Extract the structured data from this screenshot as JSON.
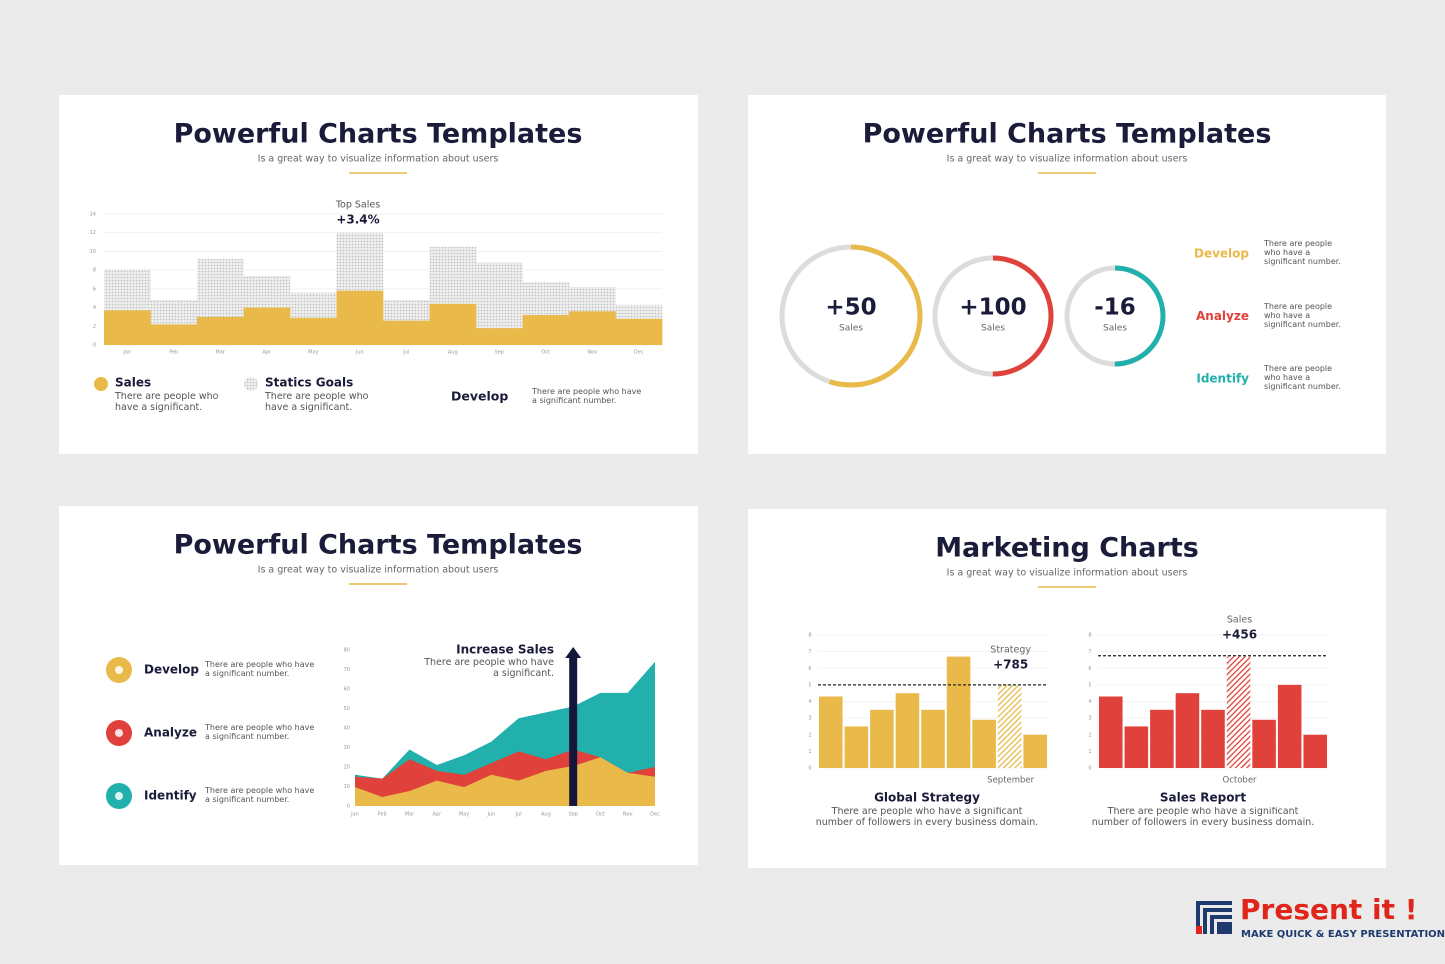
{
  "chart_data": [
    {
      "type": "step-area",
      "title": "Powerful Charts Templates",
      "subtitle": "Is a great way to visualize information about users",
      "annotation_title": "Top Sales",
      "annotation": "+3.4%",
      "categories": [
        "Jan",
        "Feb",
        "Mar",
        "Apr",
        "May",
        "Jun",
        "Jul",
        "Aug",
        "Sep",
        "Oct",
        "Nov",
        "Dec"
      ],
      "series": [
        {
          "name": "Sales",
          "color": "#e9b949",
          "description": "There are people who have a significant.",
          "values": [
            3.7,
            2.2,
            3.0,
            4.0,
            2.9,
            5.8,
            2.6,
            4.4,
            1.8,
            3.2,
            3.6,
            2.8
          ]
        },
        {
          "name": "Statics Goals",
          "color": "#cfcfcf",
          "description": "There are people who have a significant.",
          "values": [
            8.1,
            4.8,
            9.2,
            7.4,
            5.6,
            12,
            4.8,
            10.5,
            8.8,
            6.7,
            6.2,
            4.3
          ]
        }
      ],
      "ylim": [
        0,
        14
      ],
      "yticks": [
        0,
        2,
        4,
        6,
        8,
        10,
        12,
        14
      ],
      "grid": true,
      "note_title": "Develop",
      "note": "There are people who have a significant number."
    },
    {
      "type": "ring",
      "title": "Powerful Charts Templates",
      "subtitle": "Is a great way to visualize information about users",
      "values": [
        55,
        50,
        50
      ],
      "labels": [
        "+50",
        "+100",
        "-16"
      ],
      "sublabels": [
        "Sales",
        "Sales",
        "Sales"
      ],
      "colors": [
        "#e9b949",
        "#e0413a",
        "#21b0ac"
      ],
      "items": [
        {
          "name": "Develop",
          "text": "There are people who have a significant number."
        },
        {
          "name": "Analyze",
          "text": "There are people who have a significant number."
        },
        {
          "name": "Identify",
          "text": "There are people who have a significant number."
        }
      ]
    },
    {
      "type": "area",
      "title": "Powerful Charts Templates",
      "subtitle": "Is a great way to visualize information about users",
      "annotation_title": "Increase Sales",
      "annotation": "There are people who have a significant.",
      "categories": [
        "Jan",
        "Feb",
        "Mar",
        "Apr",
        "May",
        "Jun",
        "Jul",
        "Aug",
        "Sep",
        "Oct",
        "Nov",
        "Dec"
      ],
      "series": [
        {
          "name": "Develop",
          "color": "#e9b949",
          "description": "There are people who have a significant number.",
          "values": [
            9.7,
            4.6,
            7.7,
            13,
            9.7,
            16,
            13,
            18,
            20.5,
            25,
            17,
            15
          ]
        },
        {
          "name": "Analyze",
          "color": "#e0413a",
          "description": "There are people who have a significant number.",
          "values": [
            15,
            14,
            24,
            18,
            16,
            22,
            28,
            24,
            29,
            25,
            17,
            20
          ]
        },
        {
          "name": "Identify",
          "color": "#21b0ac",
          "description": "There are people who have a significant number.",
          "values": [
            16,
            14,
            29,
            21,
            26,
            33,
            45,
            48,
            51,
            58,
            58,
            74
          ]
        }
      ],
      "ylim": [
        0,
        80
      ],
      "yticks": [
        0,
        10,
        20,
        30,
        40,
        50,
        60,
        70,
        80
      ]
    },
    {
      "type": "bar-pair",
      "title": "Marketing Charts",
      "subtitle": "Is a great way to visualize information about users",
      "charts": [
        {
          "name": "Global Strategy",
          "description": "There are people who have a significant number of followers in every business domain.",
          "color": "#e9b949",
          "annotation_title": "Strategy",
          "annotation": "+785",
          "reference": 5,
          "categories": [
            null,
            null,
            null,
            null,
            null,
            null,
            null,
            "September",
            null
          ],
          "values": [
            4.3,
            2.5,
            3.5,
            4.5,
            3.5,
            6.7,
            2.9,
            5,
            2.0
          ],
          "ylim": [
            0,
            8
          ],
          "yticks": [
            0,
            1,
            2,
            3,
            4,
            5,
            6,
            7,
            8
          ]
        },
        {
          "name": "Sales Report",
          "description": "There are people who have a significant number of followers in every business domain.",
          "color": "#e0413a",
          "annotation_title": "Sales",
          "annotation": "+456",
          "reference": 6.75,
          "categories": [
            null,
            null,
            null,
            null,
            null,
            "October",
            null,
            null,
            null
          ],
          "values": [
            4.3,
            2.5,
            3.5,
            4.5,
            3.5,
            6.7,
            2.9,
            5,
            2.0
          ],
          "ylim": [
            0,
            8
          ],
          "yticks": [
            0,
            1,
            2,
            3,
            4,
            5,
            6,
            7,
            8
          ]
        }
      ]
    }
  ],
  "brand": {
    "name": "Present it !",
    "tagline": "MAKE QUICK & EASY PRESENTATIONS"
  }
}
